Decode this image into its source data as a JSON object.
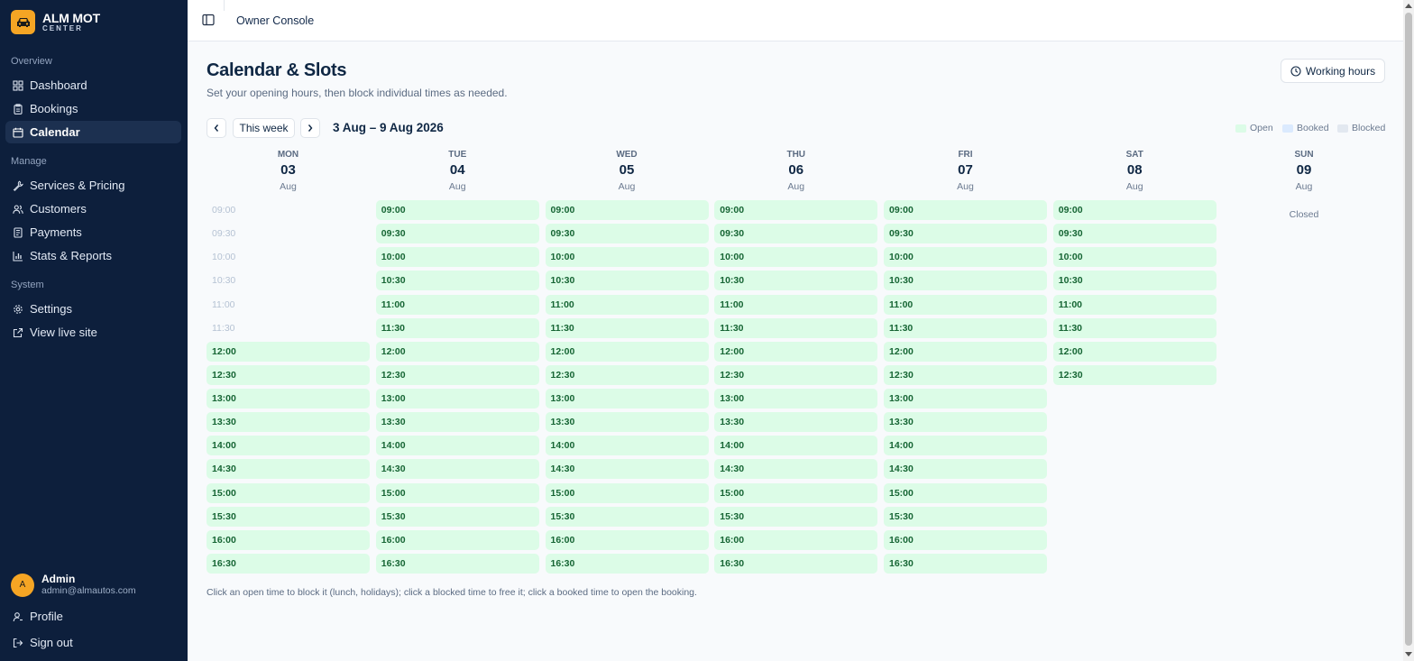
{
  "brand": {
    "name": "ALM MOT",
    "sub": "CENTER"
  },
  "sidebar": {
    "sections": [
      {
        "title": "Overview",
        "items": [
          {
            "label": "Dashboard",
            "icon": "dashboard-icon",
            "active": false
          },
          {
            "label": "Bookings",
            "icon": "clipboard-icon",
            "active": false
          },
          {
            "label": "Calendar",
            "icon": "calendar-icon",
            "active": true
          }
        ]
      },
      {
        "title": "Manage",
        "items": [
          {
            "label": "Services & Pricing",
            "icon": "wrench-icon",
            "active": false
          },
          {
            "label": "Customers",
            "icon": "users-icon",
            "active": false
          },
          {
            "label": "Payments",
            "icon": "receipt-icon",
            "active": false
          },
          {
            "label": "Stats & Reports",
            "icon": "bar-chart-icon",
            "active": false
          }
        ]
      },
      {
        "title": "System",
        "items": [
          {
            "label": "Settings",
            "icon": "gear-icon",
            "active": false
          },
          {
            "label": "View live site",
            "icon": "external-link-icon",
            "active": false
          }
        ]
      }
    ],
    "user": {
      "initial": "A",
      "name": "Admin",
      "email": "admin@almautos.com"
    },
    "profile_label": "Profile",
    "signout_label": "Sign out"
  },
  "topbar": {
    "title": "Owner Console"
  },
  "page": {
    "title": "Calendar & Slots",
    "subtitle": "Set your opening hours, then block individual times as needed.",
    "working_hours_label": "Working hours",
    "this_week_label": "This week",
    "range": "3 Aug – 9 Aug 2026",
    "legend": [
      {
        "label": "Open",
        "color": "#dcfce7"
      },
      {
        "label": "Booked",
        "color": "#dbeafe"
      },
      {
        "label": "Blocked",
        "color": "#e2e8f0"
      }
    ],
    "footnote": "Click an open time to block it (lunch, holidays); click a blocked time to free it; click a booked time to open the booking."
  },
  "times": [
    "09:00",
    "09:30",
    "10:00",
    "10:30",
    "11:00",
    "11:30",
    "12:00",
    "12:30",
    "13:00",
    "13:30",
    "14:00",
    "14:30",
    "15:00",
    "15:30",
    "16:00",
    "16:30"
  ],
  "days": [
    {
      "name": "MON",
      "num": "03",
      "month": "Aug",
      "closed": false,
      "open_from": 6,
      "open_to": 16
    },
    {
      "name": "TUE",
      "num": "04",
      "month": "Aug",
      "closed": false,
      "open_from": 0,
      "open_to": 16
    },
    {
      "name": "WED",
      "num": "05",
      "month": "Aug",
      "closed": false,
      "open_from": 0,
      "open_to": 16
    },
    {
      "name": "THU",
      "num": "06",
      "month": "Aug",
      "closed": false,
      "open_from": 0,
      "open_to": 16
    },
    {
      "name": "FRI",
      "num": "07",
      "month": "Aug",
      "closed": false,
      "open_from": 0,
      "open_to": 16
    },
    {
      "name": "SAT",
      "num": "08",
      "month": "Aug",
      "closed": false,
      "open_from": 0,
      "open_to": 8
    },
    {
      "name": "SUN",
      "num": "09",
      "month": "Aug",
      "closed": true,
      "closed_label": "Closed"
    }
  ],
  "colors": {
    "accent": "#f5a524",
    "sidebar_bg": "#0d1f3c",
    "open_bg": "#dcfce7",
    "open_text": "#166534"
  }
}
